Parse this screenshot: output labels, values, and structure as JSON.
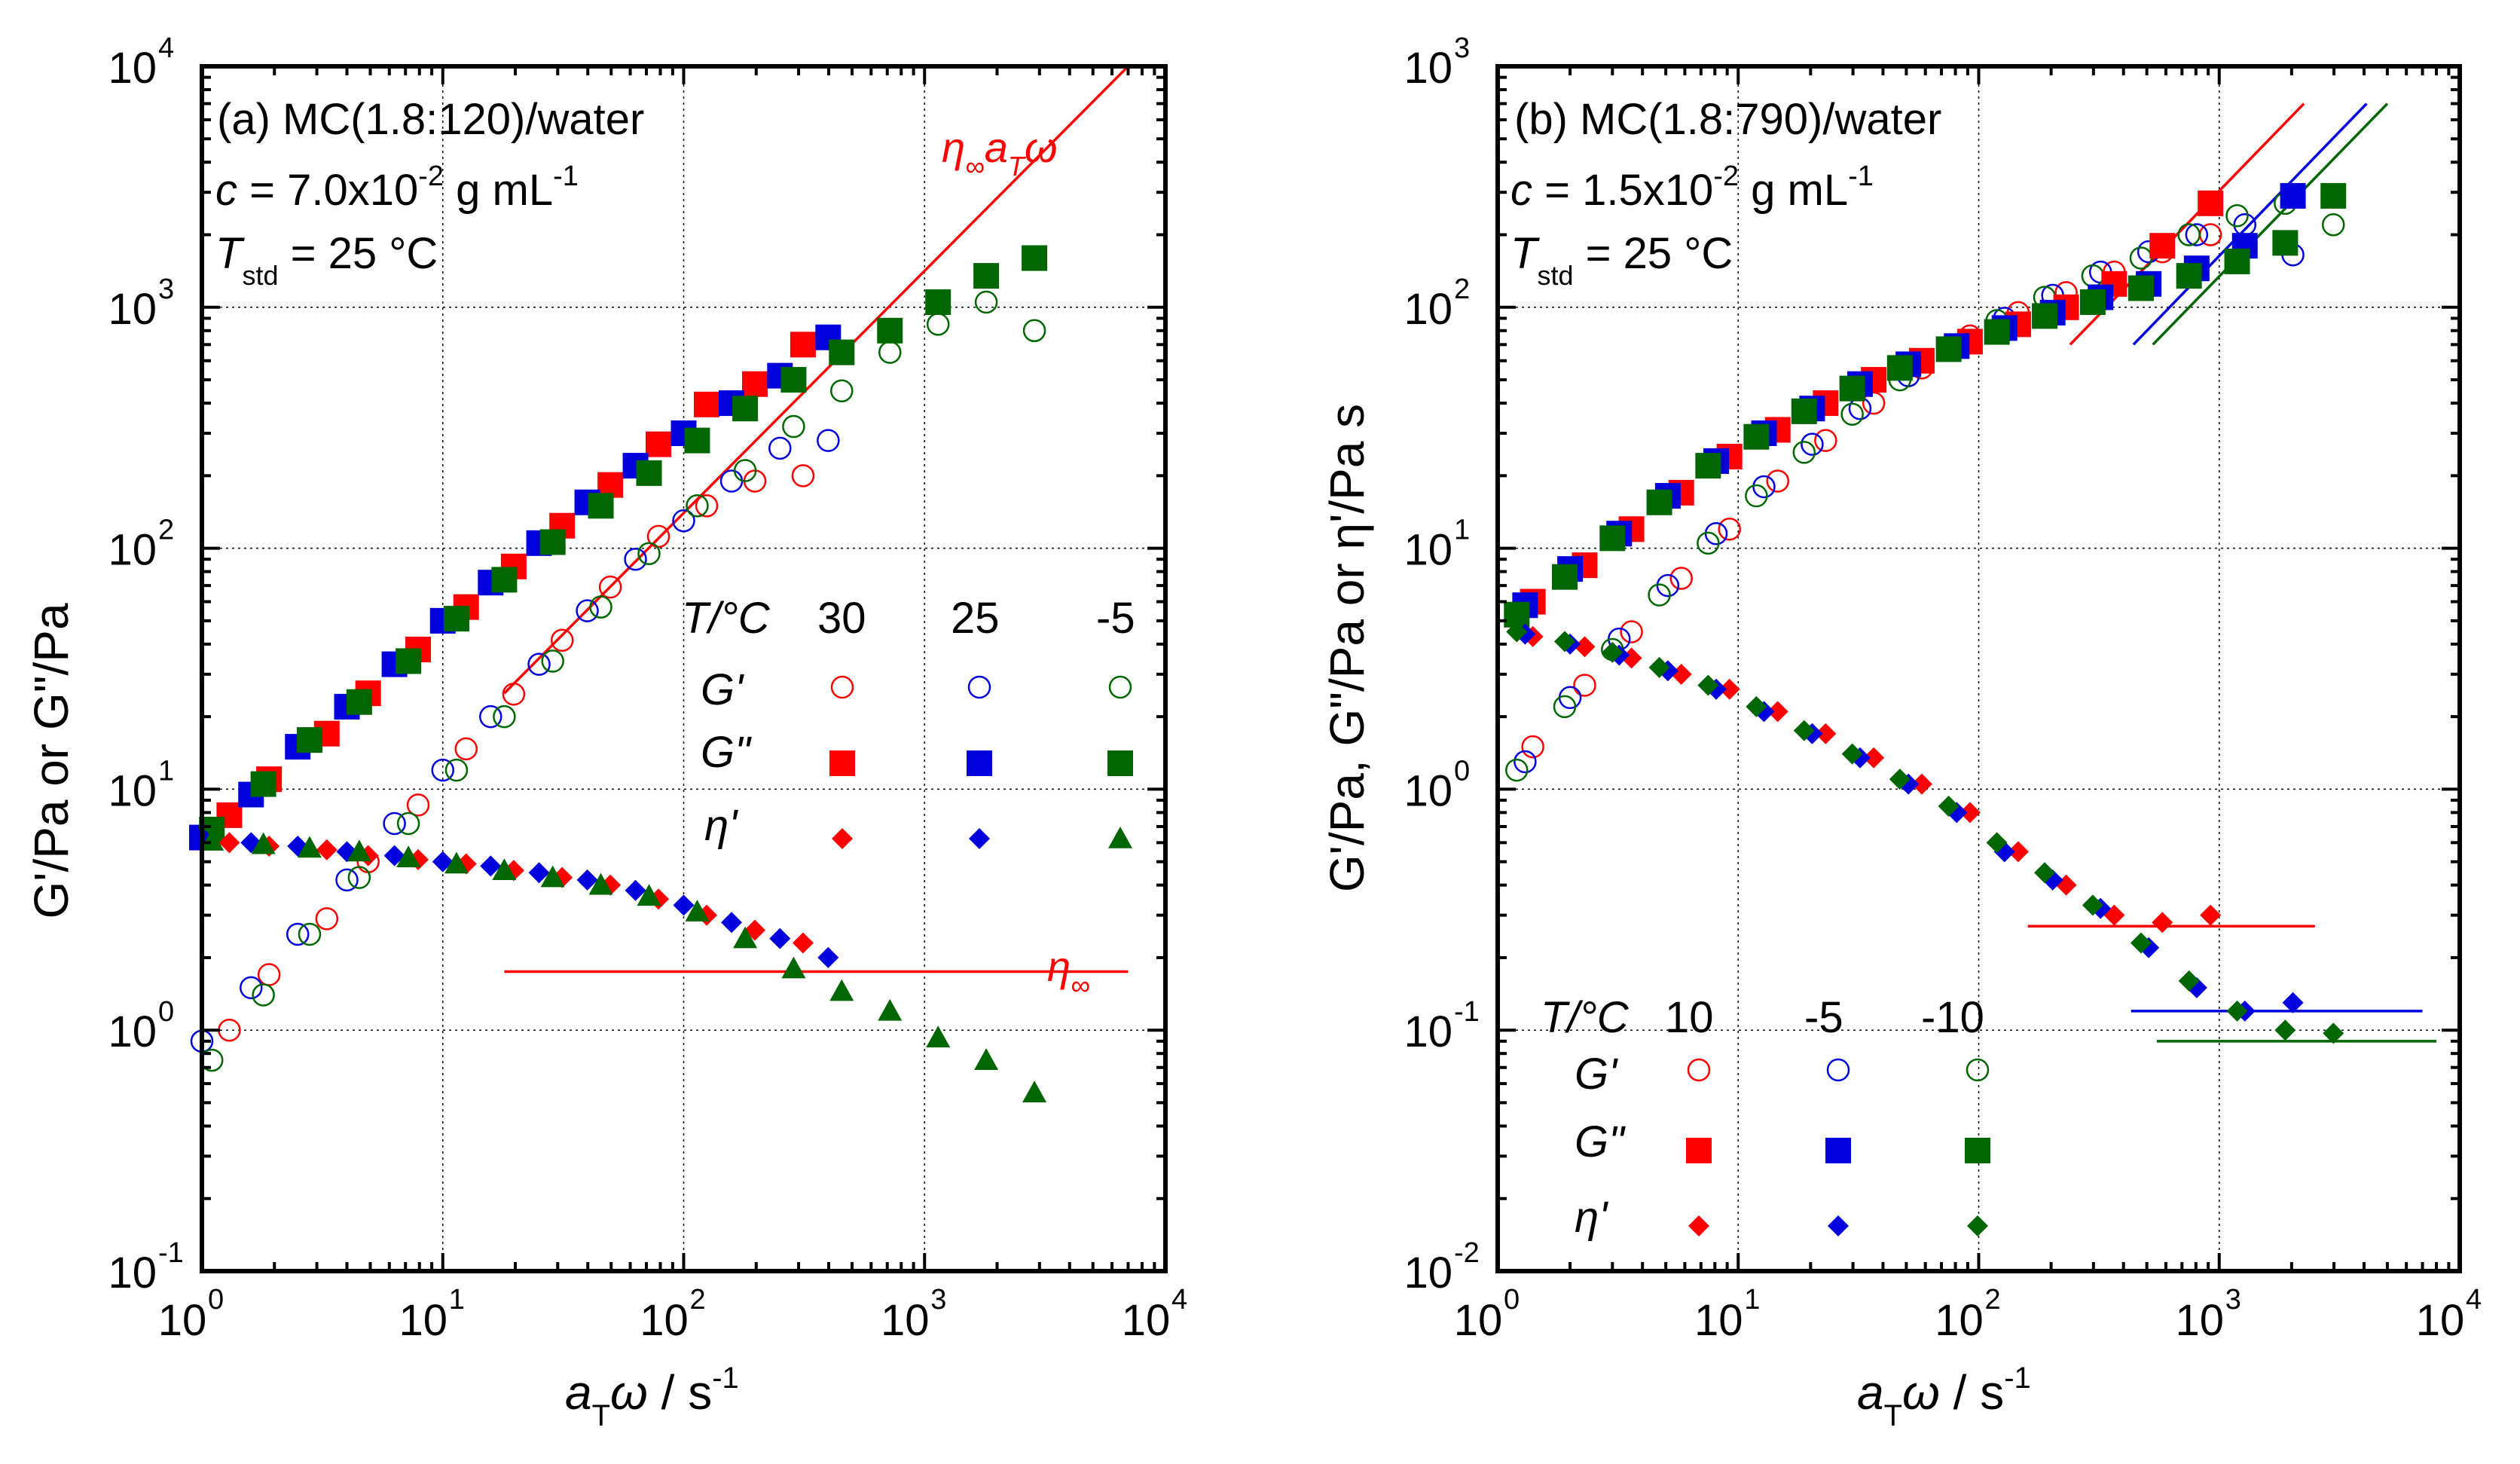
{
  "figure": {
    "subfigure_count": 2
  },
  "colors": {
    "t_hi": "#ff0000",
    "t_mid": "#0000dd",
    "t_lo": "#006600"
  },
  "chart_data": [
    {
      "type": "scatter",
      "panel_label": "(a) MC(1.8:120)/water",
      "conc_prefix": "c",
      "conc_text": " = 7.0x10",
      "conc_exp": "-2",
      "conc_unit": " g mL",
      "conc_unit_exp": "-1",
      "tstd_label": "T",
      "tstd_sub": "std",
      "tstd_text": " = 25 °C",
      "xlabel_main": "a",
      "xlabel_sub": "T",
      "xlabel_sym": "ω",
      "xlabel_unit": " / s",
      "xlabel_exp": "-1",
      "ylabel": "G'/Pa or G\"/Pa",
      "x_ticks": [
        "10",
        "10",
        "10",
        "10",
        "10"
      ],
      "x_tick_exp": [
        "0",
        "1",
        "2",
        "3",
        "4"
      ],
      "y_ticks": [
        "10",
        "10",
        "10",
        "10",
        "10",
        "10"
      ],
      "y_tick_exp": [
        "-1",
        "0",
        "1",
        "2",
        "3",
        "4"
      ],
      "xlim": [
        1,
        10000
      ],
      "ylim": [
        0.1,
        10000
      ],
      "xscale": "log",
      "yscale": "log",
      "legend_header": "T/°C",
      "legend_temps": [
        "30",
        "25",
        "-5"
      ],
      "legend_rows": [
        "G'",
        "G\"",
        "η'"
      ],
      "annotations": {
        "slope_line_label": "η∞aTω",
        "eta_inf_label": "η∞"
      },
      "ref_lines": [
        {
          "name": "slope-line",
          "x": [
            18,
            7000
          ],
          "y": [
            25,
            10000
          ]
        },
        {
          "name": "eta-inf-line",
          "x": [
            18,
            7000
          ],
          "y": [
            1.75,
            1.75
          ]
        }
      ],
      "series": [
        {
          "name": "G' 30°C",
          "marker": "open-circle",
          "color": "red",
          "x": [
            1.3,
            1.9,
            3.3,
            4.9,
            7.9,
            12.5,
            19.7,
            31.3,
            49.6,
            78.6,
            124.6,
            197.5,
            313
          ],
          "y": [
            1.0,
            1.7,
            2.9,
            5.0,
            8.6,
            14.7,
            24.8,
            41.5,
            69,
            112,
            150,
            190,
            200
          ]
        },
        {
          "name": "G' 25°C",
          "marker": "open-circle",
          "color": "blue",
          "x": [
            1,
            1.6,
            2.5,
            4.0,
            6.3,
            10,
            15.8,
            25.1,
            39.8,
            63.1,
            100,
            158,
            251,
            398
          ],
          "y": [
            0.9,
            1.5,
            2.5,
            4.2,
            7.2,
            12,
            20,
            33,
            55,
            90,
            130,
            190,
            260,
            280
          ]
        },
        {
          "name": "G' -5°C",
          "marker": "open-circle",
          "color": "green",
          "x": [
            1.1,
            1.8,
            2.8,
            4.5,
            7.2,
            11.4,
            18,
            28.6,
            45.3,
            71.8,
            113.8,
            180,
            286,
            453,
            718,
            1138,
            1803,
            2858
          ],
          "y": [
            0.75,
            1.4,
            2.5,
            4.3,
            7.2,
            12,
            20,
            34,
            57,
            95,
            150,
            210,
            320,
            450,
            650,
            850,
            1050,
            800
          ]
        },
        {
          "name": "G\" 30°C",
          "marker": "square",
          "color": "red",
          "x": [
            1.3,
            1.9,
            3.3,
            4.9,
            7.9,
            12.5,
            19.7,
            31.3,
            49.6,
            78.6,
            124.6,
            197.5,
            313
          ],
          "y": [
            7.8,
            11,
            17,
            25,
            38,
            57,
            84,
            124,
            183,
            270,
            395,
            480,
            700
          ]
        },
        {
          "name": "G\" 25°C",
          "marker": "square",
          "color": "blue",
          "x": [
            1,
            1.6,
            2.5,
            4.0,
            6.3,
            10,
            15.8,
            25.1,
            39.8,
            63.1,
            100,
            158,
            251,
            398
          ],
          "y": [
            6.3,
            9.5,
            15,
            22,
            33,
            50,
            72,
            105,
            155,
            220,
            300,
            400,
            520,
            750
          ]
        },
        {
          "name": "G\" -5°C",
          "marker": "square",
          "color": "green",
          "x": [
            1.1,
            1.8,
            2.8,
            4.5,
            7.2,
            11.4,
            18,
            28.6,
            45.3,
            71.8,
            113.8,
            180,
            286,
            453,
            718,
            1138,
            1803,
            2858
          ],
          "y": [
            6.8,
            10.5,
            16,
            23,
            34,
            51,
            74,
            106,
            150,
            205,
            280,
            380,
            500,
            650,
            800,
            1050,
            1350,
            1600
          ]
        },
        {
          "name": "η' 30°C",
          "marker": "diamond",
          "color": "red",
          "x": [
            1.3,
            1.9,
            3.3,
            4.9,
            7.9,
            12.5,
            19.7,
            31.3,
            49.6,
            78.6,
            124.6,
            197.5,
            313
          ],
          "y": [
            6.0,
            5.8,
            5.6,
            5.3,
            5.1,
            4.9,
            4.6,
            4.3,
            4.0,
            3.5,
            3.0,
            2.6,
            2.3
          ]
        },
        {
          "name": "η' 25°C",
          "marker": "diamond",
          "color": "blue",
          "x": [
            1,
            1.6,
            2.5,
            4.0,
            6.3,
            10,
            15.8,
            25.1,
            39.8,
            63.1,
            100,
            158,
            251,
            398
          ],
          "y": [
            6.3,
            6.0,
            5.8,
            5.5,
            5.3,
            5.0,
            4.8,
            4.5,
            4.2,
            3.8,
            3.3,
            2.8,
            2.4,
            2.0
          ]
        },
        {
          "name": "η' -5°C",
          "marker": "triangle",
          "color": "green",
          "x": [
            1.1,
            1.8,
            2.8,
            4.5,
            7.2,
            11.4,
            18,
            28.6,
            45.3,
            71.8,
            113.8,
            180,
            286,
            453,
            718,
            1138,
            1803,
            2858
          ],
          "y": [
            6.1,
            5.9,
            5.7,
            5.5,
            5.2,
            4.9,
            4.6,
            4.3,
            4.0,
            3.6,
            3.1,
            2.4,
            1.8,
            1.45,
            1.2,
            0.93,
            0.75,
            0.55
          ]
        }
      ]
    },
    {
      "type": "scatter",
      "panel_label": "(b) MC(1.8:790)/water",
      "conc_prefix": "c",
      "conc_text": " = 1.5x10",
      "conc_exp": "-2",
      "conc_unit": " g mL",
      "conc_unit_exp": "-1",
      "tstd_label": "T",
      "tstd_sub": "std",
      "tstd_text": " = 25 °C",
      "xlabel_main": "a",
      "xlabel_sub": "T",
      "xlabel_sym": "ω",
      "xlabel_unit": " / s",
      "xlabel_exp": "-1",
      "ylabel": "G'/Pa, G\"/Pa or η'/Pa s",
      "x_ticks": [
        "10",
        "10",
        "10",
        "10",
        "10"
      ],
      "x_tick_exp": [
        "0",
        "1",
        "2",
        "3",
        "4"
      ],
      "y_ticks": [
        "10",
        "10",
        "10",
        "10",
        "10",
        "10"
      ],
      "y_tick_exp": [
        "-2",
        "-1",
        "0",
        "1",
        "2",
        "3"
      ],
      "xlim": [
        1,
        10000
      ],
      "ylim": [
        0.01,
        1000
      ],
      "xscale": "log",
      "yscale": "log",
      "legend_header": "T/°C",
      "legend_temps": [
        "10",
        "-5",
        "-10"
      ],
      "legend_rows": [
        "G'",
        "G\"",
        "η'"
      ],
      "ref_lines": [
        {
          "name": "slope-line-10",
          "color": "red",
          "x": [
            240,
            2250
          ],
          "y": [
            70,
            700
          ]
        },
        {
          "name": "slope-line-m5",
          "color": "blue",
          "x": [
            440,
            4100
          ],
          "y": [
            70,
            700
          ]
        },
        {
          "name": "slope-line-m10",
          "color": "green",
          "x": [
            530,
            5000
          ],
          "y": [
            70,
            700
          ]
        },
        {
          "name": "eta-inf-10",
          "color": "red",
          "x": [
            160,
            2500
          ],
          "y": [
            0.27,
            0.27
          ]
        },
        {
          "name": "eta-inf-m5",
          "color": "blue",
          "x": [
            430,
            7000
          ],
          "y": [
            0.12,
            0.12
          ]
        },
        {
          "name": "eta-inf-m10",
          "color": "green",
          "x": [
            550,
            8000
          ],
          "y": [
            0.09,
            0.09
          ]
        }
      ],
      "series": [
        {
          "name": "G' 10°C",
          "marker": "open-circle",
          "color": "red",
          "x": [
            1.4,
            2.3,
            3.6,
            5.8,
            9.2,
            14.6,
            23.1,
            36.6,
            58,
            92,
            146,
            231,
            366,
            580,
            920
          ],
          "y": [
            1.5,
            2.7,
            4.5,
            7.5,
            12,
            19,
            28,
            40,
            56,
            76,
            95,
            115,
            140,
            170,
            200
          ]
        },
        {
          "name": "G' -5°C",
          "marker": "open-circle",
          "color": "blue",
          "x": [
            1.3,
            2.0,
            3.2,
            5.1,
            8.1,
            12.8,
            20.3,
            32.1,
            51,
            81,
            128,
            203,
            321,
            509,
            806,
            1278,
            2025
          ],
          "y": [
            1.3,
            2.4,
            4.2,
            7.0,
            11.5,
            18,
            27,
            38,
            52,
            70,
            90,
            112,
            140,
            170,
            200,
            220,
            165
          ]
        },
        {
          "name": "G' -10°C",
          "marker": "open-circle",
          "color": "green",
          "x": [
            1.2,
            1.9,
            3.0,
            4.7,
            7.5,
            11.9,
            18.8,
            29.8,
            47,
            75,
            119,
            188,
            298,
            473,
            749,
            1187,
            1881,
            2982
          ],
          "y": [
            1.2,
            2.2,
            3.8,
            6.4,
            10.5,
            16.5,
            25,
            36,
            50,
            67,
            88,
            110,
            135,
            160,
            200,
            240,
            270,
            220
          ]
        },
        {
          "name": "G\" 10°C",
          "marker": "square",
          "color": "red",
          "x": [
            1.4,
            2.3,
            3.6,
            5.8,
            9.2,
            14.6,
            23.1,
            36.6,
            58,
            92,
            146,
            231,
            366,
            580,
            920
          ],
          "y": [
            6,
            8.5,
            12,
            17,
            24,
            31,
            40,
            50,
            60,
            72,
            85,
            100,
            125,
            180,
            270
          ]
        },
        {
          "name": "G\" -5°C",
          "marker": "square",
          "color": "blue",
          "x": [
            1.3,
            2.0,
            3.2,
            5.1,
            8.1,
            12.8,
            20.3,
            32.1,
            51,
            81,
            128,
            203,
            321,
            509,
            806,
            1278,
            2025
          ],
          "y": [
            5.8,
            8.2,
            11.5,
            16.5,
            23,
            30,
            38,
            48,
            58,
            69,
            82,
            95,
            110,
            125,
            145,
            180,
            290
          ]
        },
        {
          "name": "G\" -10°C",
          "marker": "square",
          "color": "green",
          "x": [
            1.2,
            1.9,
            3.0,
            4.7,
            7.5,
            11.9,
            18.8,
            29.8,
            47,
            75,
            119,
            188,
            298,
            473,
            749,
            1187,
            1881,
            2982
          ],
          "y": [
            5.3,
            7.6,
            11,
            15.5,
            22,
            29,
            37,
            46,
            56,
            67,
            79,
            92,
            105,
            120,
            135,
            155,
            185,
            290
          ]
        },
        {
          "name": "η' 10°C",
          "marker": "diamond",
          "color": "red",
          "x": [
            1.4,
            2.3,
            3.6,
            5.8,
            9.2,
            14.6,
            23.1,
            36.6,
            58,
            92,
            146,
            231,
            366,
            580,
            920
          ],
          "y": [
            4.3,
            3.9,
            3.5,
            3.0,
            2.6,
            2.1,
            1.7,
            1.35,
            1.05,
            0.8,
            0.55,
            0.4,
            0.3,
            0.28,
            0.3
          ]
        },
        {
          "name": "η' -5°C",
          "marker": "diamond",
          "color": "blue",
          "x": [
            1.3,
            2.0,
            3.2,
            5.1,
            8.1,
            12.8,
            20.3,
            32.1,
            51,
            81,
            128,
            203,
            321,
            509,
            806,
            1278,
            2025
          ],
          "y": [
            4.4,
            4.0,
            3.6,
            3.1,
            2.6,
            2.1,
            1.7,
            1.35,
            1.05,
            0.8,
            0.55,
            0.42,
            0.32,
            0.22,
            0.15,
            0.12,
            0.13
          ]
        },
        {
          "name": "η' -10°C",
          "marker": "diamond",
          "color": "green",
          "x": [
            1.2,
            1.9,
            3.0,
            4.7,
            7.5,
            11.9,
            18.8,
            29.8,
            47,
            75,
            119,
            188,
            298,
            473,
            749,
            1187,
            1881,
            2982
          ],
          "y": [
            4.5,
            4.1,
            3.7,
            3.2,
            2.7,
            2.2,
            1.75,
            1.4,
            1.1,
            0.85,
            0.6,
            0.45,
            0.33,
            0.23,
            0.16,
            0.12,
            0.1,
            0.097
          ]
        }
      ]
    }
  ]
}
